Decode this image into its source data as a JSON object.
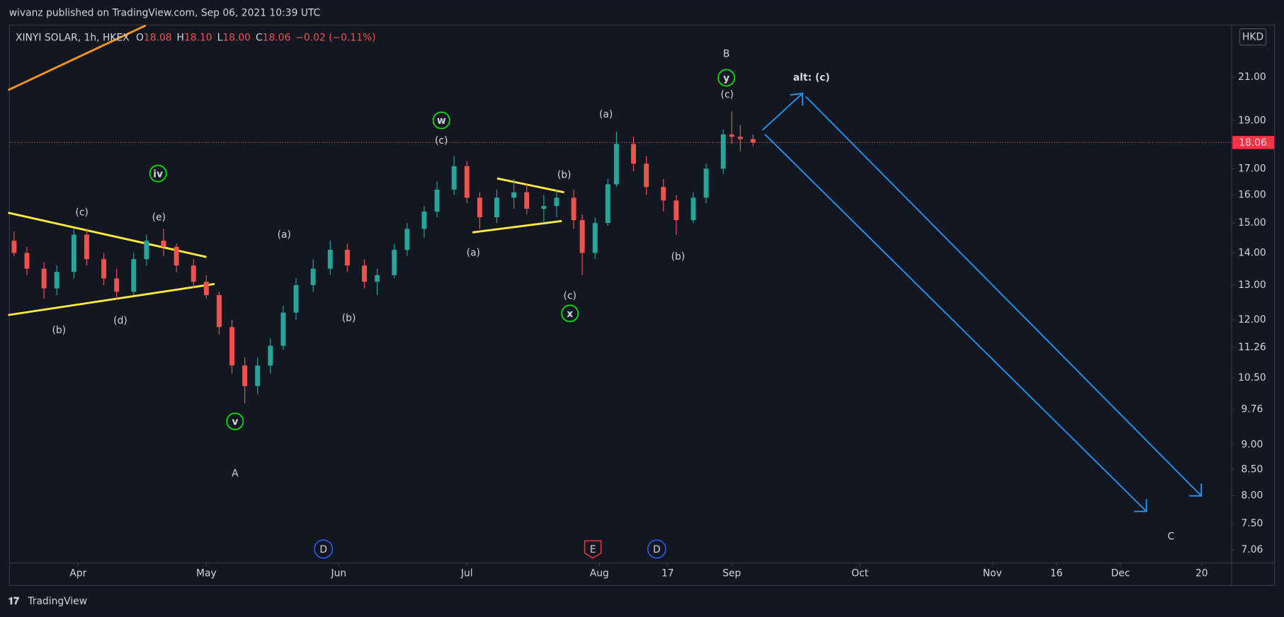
{
  "chart_data": {
    "type": "candlestick",
    "publisher": "wivanz published on TradingView.com, Sep 06, 2021 10:39 UTC",
    "brand": "TradingView",
    "currency": "HKD",
    "legend": {
      "symbol": "XINYI SOLAR, 1h, HKEX",
      "items": [
        {
          "key": "O",
          "value": "18.08"
        },
        {
          "key": "H",
          "value": "18.10"
        },
        {
          "key": "L",
          "value": "18.00"
        },
        {
          "key": "C",
          "value": "18.06"
        }
      ],
      "change": "−0.02 (−0.11%)"
    },
    "log_scale": true,
    "up_color": "#26a69a",
    "down_color": "#ef5350",
    "last_price": {
      "value": 18.06,
      "label": "18.06"
    },
    "xlim": [
      "2021-03-16",
      "2021-12-27"
    ],
    "xticks": [
      {
        "value": "2021-04-01",
        "label": "Apr"
      },
      {
        "value": "2021-05-01",
        "label": "May"
      },
      {
        "value": "2021-06-01",
        "label": "Jun"
      },
      {
        "value": "2021-07-01",
        "label": "Jul"
      },
      {
        "value": "2021-08-01",
        "label": "Aug"
      },
      {
        "value": "2021-08-17",
        "label": "17"
      },
      {
        "value": "2021-09-01",
        "label": "Sep"
      },
      {
        "value": "2021-10-01",
        "label": "Oct"
      },
      {
        "value": "2021-11-01",
        "label": "Nov"
      },
      {
        "value": "2021-11-16",
        "label": "16"
      },
      {
        "value": "2021-12-01",
        "label": "Dec"
      },
      {
        "value": "2021-12-20",
        "label": "20"
      }
    ],
    "ylim": [
      6.85,
      23.7
    ],
    "yticks": [
      {
        "value": 21,
        "label": "21.00"
      },
      {
        "value": 19,
        "label": "19.00"
      },
      {
        "value": 17,
        "label": "17.00"
      },
      {
        "value": 16,
        "label": "16.00"
      },
      {
        "value": 15,
        "label": "15.00"
      },
      {
        "value": 14,
        "label": "14.00"
      },
      {
        "value": 13,
        "label": "13.00"
      },
      {
        "value": 12,
        "label": "12.00"
      },
      11.26,
      {
        "value": 10.5,
        "label": "10.50"
      },
      9.76,
      {
        "value": 9,
        "label": "9.00"
      },
      {
        "value": 8.5,
        "label": "8.50"
      },
      {
        "value": 8,
        "label": "8.00"
      },
      {
        "value": 7.5,
        "label": "7.50"
      },
      7.06
    ],
    "x": [
      "2021-03-17",
      "2021-03-20",
      "2021-03-24",
      "2021-03-27",
      "2021-03-31",
      "2021-04-03",
      "2021-04-07",
      "2021-04-10",
      "2021-04-14",
      "2021-04-17",
      "2021-04-21",
      "2021-04-24",
      "2021-04-28",
      "2021-05-01",
      "2021-05-04",
      "2021-05-07",
      "2021-05-10",
      "2021-05-13",
      "2021-05-16",
      "2021-05-19",
      "2021-05-22",
      "2021-05-26",
      "2021-05-30",
      "2021-06-03",
      "2021-06-07",
      "2021-06-10",
      "2021-06-14",
      "2021-06-17",
      "2021-06-21",
      "2021-06-24",
      "2021-06-28",
      "2021-07-01",
      "2021-07-04",
      "2021-07-08",
      "2021-07-12",
      "2021-07-15",
      "2021-07-19",
      "2021-07-22",
      "2021-07-26",
      "2021-07-28",
      "2021-07-31",
      "2021-08-03",
      "2021-08-05",
      "2021-08-09",
      "2021-08-12",
      "2021-08-16",
      "2021-08-19",
      "2021-08-23",
      "2021-08-26",
      "2021-08-30",
      "2021-09-01",
      "2021-09-03",
      "2021-09-06"
    ],
    "open": [
      14.4,
      14.0,
      13.5,
      12.9,
      13.4,
      14.6,
      13.8,
      13.2,
      12.8,
      13.8,
      14.4,
      14.2,
      13.6,
      13.1,
      12.7,
      11.8,
      10.8,
      10.3,
      10.8,
      11.3,
      12.2,
      13.0,
      13.5,
      14.1,
      13.6,
      13.1,
      13.3,
      14.1,
      14.8,
      15.4,
      16.2,
      17.1,
      15.9,
      15.2,
      15.9,
      16.1,
      15.5,
      15.6,
      15.9,
      15.1,
      14.0,
      15.0,
      16.4,
      18.0,
      17.2,
      16.3,
      15.8,
      15.1,
      15.9,
      17.0,
      18.4,
      18.3,
      18.2
    ],
    "high": [
      14.7,
      14.2,
      13.7,
      13.6,
      14.8,
      14.8,
      14.0,
      13.5,
      14.0,
      14.6,
      14.8,
      14.3,
      13.8,
      13.3,
      12.8,
      12.0,
      11.0,
      11.0,
      11.5,
      12.4,
      13.2,
      13.8,
      14.4,
      14.3,
      13.8,
      13.5,
      14.3,
      15.0,
      15.6,
      16.5,
      17.5,
      17.3,
      16.1,
      16.2,
      16.6,
      16.4,
      16.0,
      16.2,
      16.2,
      15.3,
      15.2,
      16.6,
      18.5,
      18.3,
      17.5,
      16.6,
      16.0,
      16.1,
      17.2,
      18.6,
      19.4,
      18.8,
      18.4
    ],
    "low": [
      13.9,
      13.3,
      12.6,
      12.7,
      13.2,
      13.6,
      13.0,
      12.6,
      12.7,
      13.6,
      13.9,
      13.4,
      12.9,
      12.6,
      11.6,
      10.6,
      9.9,
      10.1,
      10.6,
      11.2,
      12.0,
      12.8,
      13.3,
      13.4,
      12.9,
      12.7,
      13.2,
      13.9,
      14.5,
      15.2,
      16.0,
      15.7,
      14.8,
      15.0,
      15.5,
      15.3,
      15.0,
      15.2,
      14.8,
      13.3,
      13.8,
      14.9,
      16.3,
      16.9,
      16.0,
      15.4,
      14.6,
      15.0,
      15.7,
      16.8,
      18.0,
      17.7,
      17.9
    ],
    "close": [
      14.0,
      13.5,
      12.9,
      13.4,
      14.6,
      13.8,
      13.2,
      12.8,
      13.8,
      14.4,
      14.2,
      13.6,
      13.1,
      12.7,
      11.8,
      10.8,
      10.3,
      10.8,
      11.3,
      12.2,
      13.0,
      13.5,
      14.1,
      13.6,
      13.1,
      13.3,
      14.1,
      14.8,
      15.4,
      16.2,
      17.1,
      15.9,
      15.2,
      15.9,
      16.1,
      15.5,
      15.6,
      15.9,
      15.1,
      14.0,
      15.0,
      16.4,
      18.0,
      17.2,
      16.3,
      15.8,
      15.1,
      15.9,
      17.0,
      18.4,
      18.3,
      18.2,
      18.06
    ],
    "annotations": [
      {
        "text": "(c)",
        "color": "#4a90e2"
      },
      {
        "text": "(b)",
        "color": "#4a90e2"
      },
      {
        "text": "(d)",
        "color": "#4a90e2"
      },
      {
        "text": "(e)",
        "color": "#4a90e2"
      },
      {
        "text": "iv",
        "color": "#00e600",
        "circled": true
      },
      {
        "text": "v",
        "color": "#00e600",
        "circled": true
      },
      {
        "text": "A",
        "color": "#e61e1e"
      },
      {
        "text": "(a)",
        "color": "#4a90e2"
      },
      {
        "text": "(b)",
        "color": "#4a90e2"
      },
      {
        "text": "(c)",
        "color": "#4a90e2"
      },
      {
        "text": "w",
        "color": "#00e600",
        "circled": true
      },
      {
        "text": "(a)",
        "color": "#4a90e2"
      },
      {
        "text": "(b)",
        "color": "#4a90e2"
      },
      {
        "text": "(c)",
        "color": "#4a90e2"
      },
      {
        "text": "x",
        "color": "#00e600",
        "circled": true
      },
      {
        "text": "(a)",
        "color": "#4a90e2"
      },
      {
        "text": "(b)",
        "color": "#4a90e2"
      },
      {
        "text": "(c)",
        "color": "#4a90e2"
      },
      {
        "text": "y",
        "color": "#00e600",
        "circled": true
      },
      {
        "text": "B",
        "color": "#e61e1e"
      },
      {
        "text": "alt: (c)",
        "color": "#ffffff",
        "bold": true
      },
      {
        "text": "C",
        "color": "#e61e1e"
      }
    ],
    "events": [
      {
        "label": "D",
        "color": "#2962ff"
      },
      {
        "label": "E",
        "color": "#f23645"
      },
      {
        "label": "D",
        "color": "#2962ff"
      }
    ]
  }
}
